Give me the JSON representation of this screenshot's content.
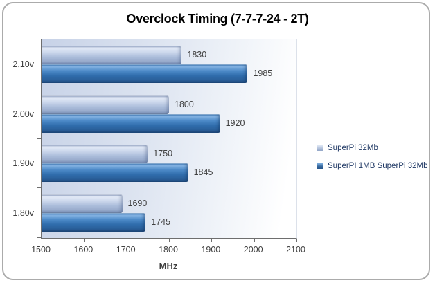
{
  "page": {
    "background_color": "#ffffff",
    "frame_border_color": "#ababab"
  },
  "chart_data": {
    "type": "bar",
    "orientation": "horizontal",
    "title": "Overclock Timing (7-7-7-24 - 2T)",
    "categories": [
      "2,10v",
      "2,00v",
      "1,90v",
      "1,80v"
    ],
    "series": [
      {
        "name": "SuperPi 32Mb",
        "values": [
          1830,
          1800,
          1750,
          1690
        ],
        "color": "#a9bbd9"
      },
      {
        "name": "SuperPI 1MB SuperPi 32Mb",
        "values": [
          1985,
          1920,
          1845,
          1745
        ],
        "color": "#2f6cab"
      }
    ],
    "xlabel": "MHz",
    "xlim": [
      1500,
      2100
    ],
    "xticks": [
      1500,
      1600,
      1700,
      1800,
      1900,
      2000,
      2100
    ],
    "legend_position": "right",
    "grid": false,
    "data_labels": true,
    "plot_background": "gradient #c7d2e7 to #ffffff"
  }
}
